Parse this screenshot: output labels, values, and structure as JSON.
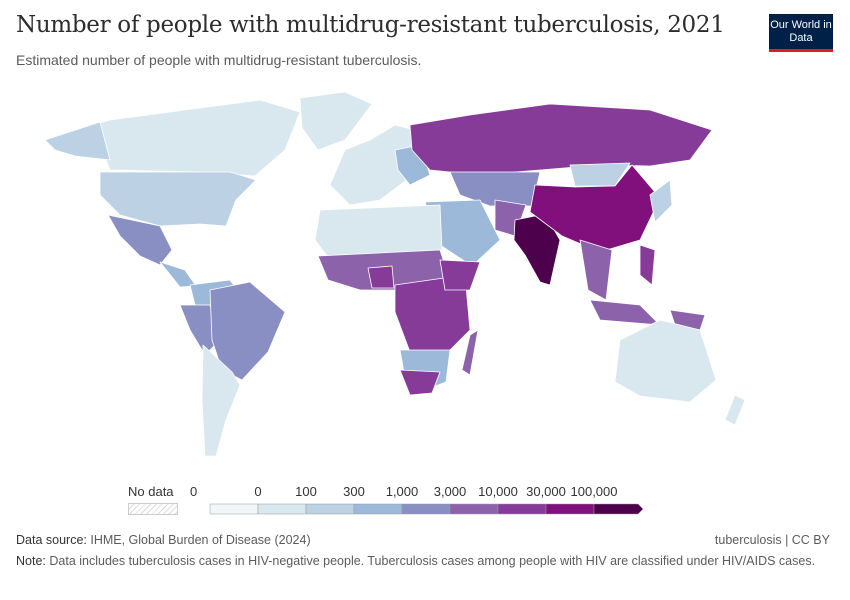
{
  "header": {
    "title": "Number of people with multidrug-resistant tuberculosis, 2021",
    "subtitle": "Estimated number of people with multidrug-resistant tuberculosis.",
    "logo": "Our World in Data"
  },
  "legend": {
    "no_data_label": "No data",
    "ticks": [
      "0",
      "0",
      "100",
      "300",
      "1,000",
      "3,000",
      "10,000",
      "30,000",
      "100,000"
    ],
    "colors": [
      "#eff7f9",
      "#d9e7ef",
      "#bcd1e4",
      "#9cb9d9",
      "#8a8fc3",
      "#8c63ab",
      "#873b99",
      "#810f7c",
      "#4d004b"
    ]
  },
  "map_fills": {
    "canada": 1,
    "greenland": 1,
    "alaska": 2,
    "usa": 2,
    "mexico": 4,
    "central_america": 3,
    "colombia_venezuela": 3,
    "peru_bolivia": 4,
    "brazil": 4,
    "argentina_chile": 1,
    "europe": 1,
    "eastern_europe": 3,
    "russia": 6,
    "kazakhstan_central_asia": 4,
    "middle_east": 3,
    "pakistan_afghanistan": 5,
    "india": 8,
    "china": 7,
    "mongolia": 2,
    "japan_korea": 2,
    "southeast_asia": 5,
    "indonesia": 5,
    "philippines": 6,
    "papua": 5,
    "north_africa": 1,
    "west_africa": 5,
    "nigeria": 6,
    "central_east_africa": 6,
    "horn_ethiopia": 6,
    "southern_africa": 3,
    "south_africa": 6,
    "madagascar": 5,
    "australia": 1,
    "new_zealand": 1
  },
  "footer": {
    "source_label": "Data source:",
    "source": "IHME, Global Burden of Disease (2024)",
    "credit": "tuberculosis | CC BY",
    "note_label": "Note:",
    "note": "Data includes tuberculosis cases in HIV-negative people. Tuberculosis cases among people with HIV are classified under HIV/AIDS cases."
  }
}
